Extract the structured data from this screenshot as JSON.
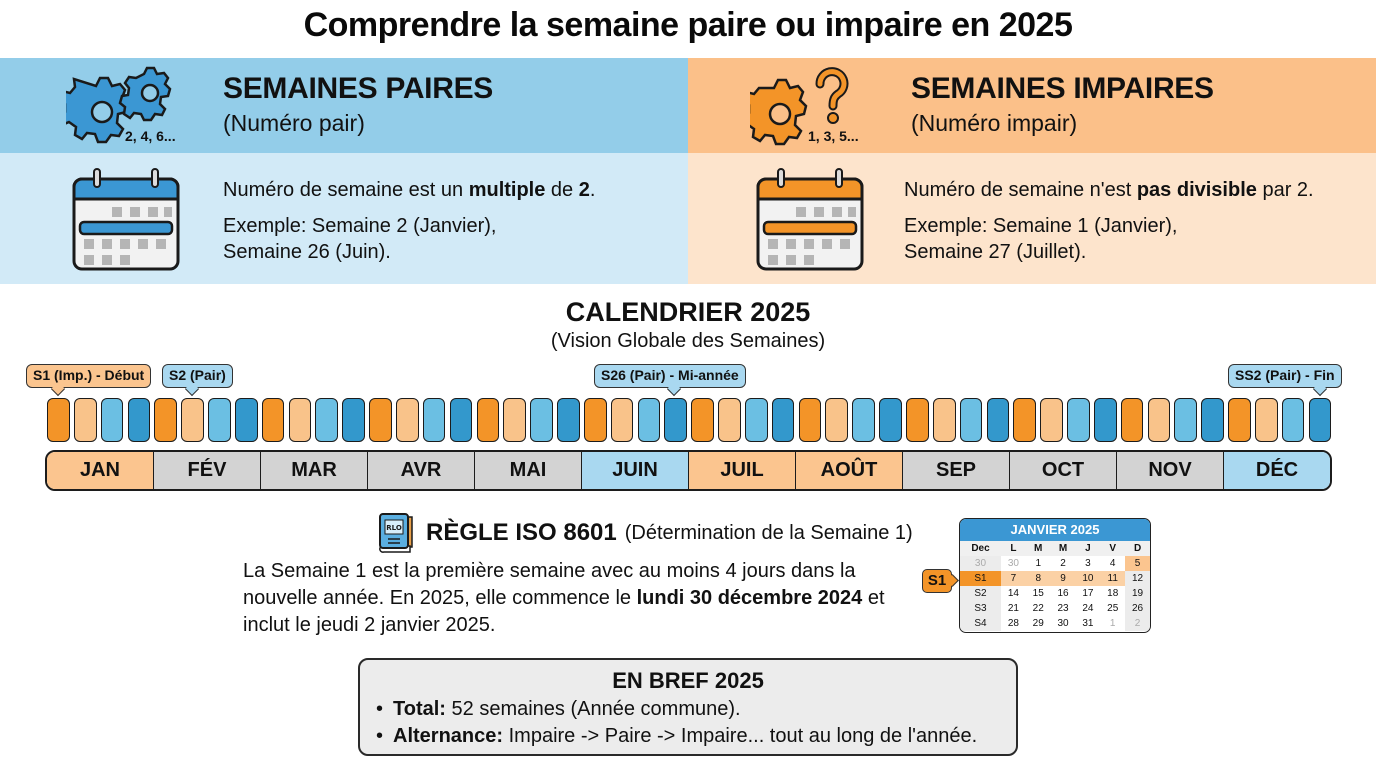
{
  "title": "Comprendre la semaine paire ou impaire en 2025",
  "even": {
    "heading": "SEMAINES PAIRES",
    "subheading": "(Numéro pair)",
    "icon_label": "2, 4, 6...",
    "rule_pre": "Numéro de semaine est un ",
    "rule_bold1": "multiple",
    "rule_mid": " de ",
    "rule_bold2": "2",
    "rule_post": ".",
    "example_line1": "Exemple: Semaine 2 (Janvier),",
    "example_line2": "Semaine 26 (Juin).",
    "colors": {
      "band_top": "#93cde9",
      "band_bottom": "#d2eaf7",
      "accent": "#3398cc"
    }
  },
  "odd": {
    "heading": "SEMAINES IMPAIRES",
    "subheading": "(Numéro impair)",
    "icon_label": "1, 3, 5...",
    "rule_pre": "Numéro de semaine n'est ",
    "rule_bold1": "pas divisible",
    "rule_post": " par 2.",
    "example_line1": "Exemple: Semaine 1 (Janvier),",
    "example_line2": "Semaine 27 (Juillet).",
    "colors": {
      "band_top": "#fbc089",
      "band_bottom": "#fde4cc",
      "accent": "#f39428"
    }
  },
  "calendar": {
    "title": "CALENDRIER 2025",
    "subtitle": "(Vision Globale des Semaines)",
    "callouts": [
      {
        "label": "S1 (Imp.) - Début",
        "type": "odd"
      },
      {
        "label": "S2 (Pair)",
        "type": "even"
      },
      {
        "label": "S26 (Pair) - Mi-année",
        "type": "even"
      },
      {
        "label": "SS2 (Pair) - Fin",
        "type": "even"
      }
    ],
    "week_bar_count": 48,
    "week_color_cycle": [
      "#f39428",
      "#f9c38a",
      "#6bbfe3",
      "#3398cc"
    ],
    "months": [
      {
        "label": "JAN",
        "color": "orange"
      },
      {
        "label": "FÉV",
        "color": "gray"
      },
      {
        "label": "MAR",
        "color": "gray"
      },
      {
        "label": "AVR",
        "color": "gray"
      },
      {
        "label": "MAI",
        "color": "gray"
      },
      {
        "label": "JUIN",
        "color": "blue"
      },
      {
        "label": "JUIL",
        "color": "orange"
      },
      {
        "label": "AOÛT",
        "color": "orange"
      },
      {
        "label": "SEP",
        "color": "gray"
      },
      {
        "label": "OCT",
        "color": "gray"
      },
      {
        "label": "NOV",
        "color": "gray"
      },
      {
        "label": "DÉC",
        "color": "blue"
      }
    ]
  },
  "iso": {
    "icon_label": "RLO",
    "title": "RÈGLE ISO 8601",
    "subtitle": "(Détermination de la Semaine 1)",
    "body_pre": "La Semaine 1 est la première semaine avec au moins 4 jours dans la nouvelle année. En 2025, elle commence le ",
    "body_bold": "lundi 30 décembre 2024",
    "body_post": " et inclut le jeudi 2 janvier 2025."
  },
  "mini_calendar": {
    "title": "JANVIER 2025",
    "tag": "S1",
    "headers": [
      "Dec",
      "L",
      "M",
      "M",
      "J",
      "V",
      "D"
    ],
    "rows": [
      [
        "30",
        "30",
        "1",
        "2",
        "3",
        "4",
        "5"
      ],
      [
        "S1",
        "7",
        "8",
        "9",
        "10",
        "11",
        "12"
      ],
      [
        "S2",
        "14",
        "15",
        "16",
        "17",
        "18",
        "19"
      ],
      [
        "S3",
        "21",
        "22",
        "23",
        "24",
        "25",
        "26"
      ],
      [
        "S4",
        "28",
        "29",
        "30",
        "31",
        "1",
        "2"
      ]
    ]
  },
  "summary": {
    "title": "EN BREF 2025",
    "items": [
      {
        "label": "Total:",
        "text": " 52 semaines (Année commune)."
      },
      {
        "label": "Alternance:",
        "text": " Impaire -> Paire -> Impaire... tout au long de l'année."
      }
    ]
  }
}
